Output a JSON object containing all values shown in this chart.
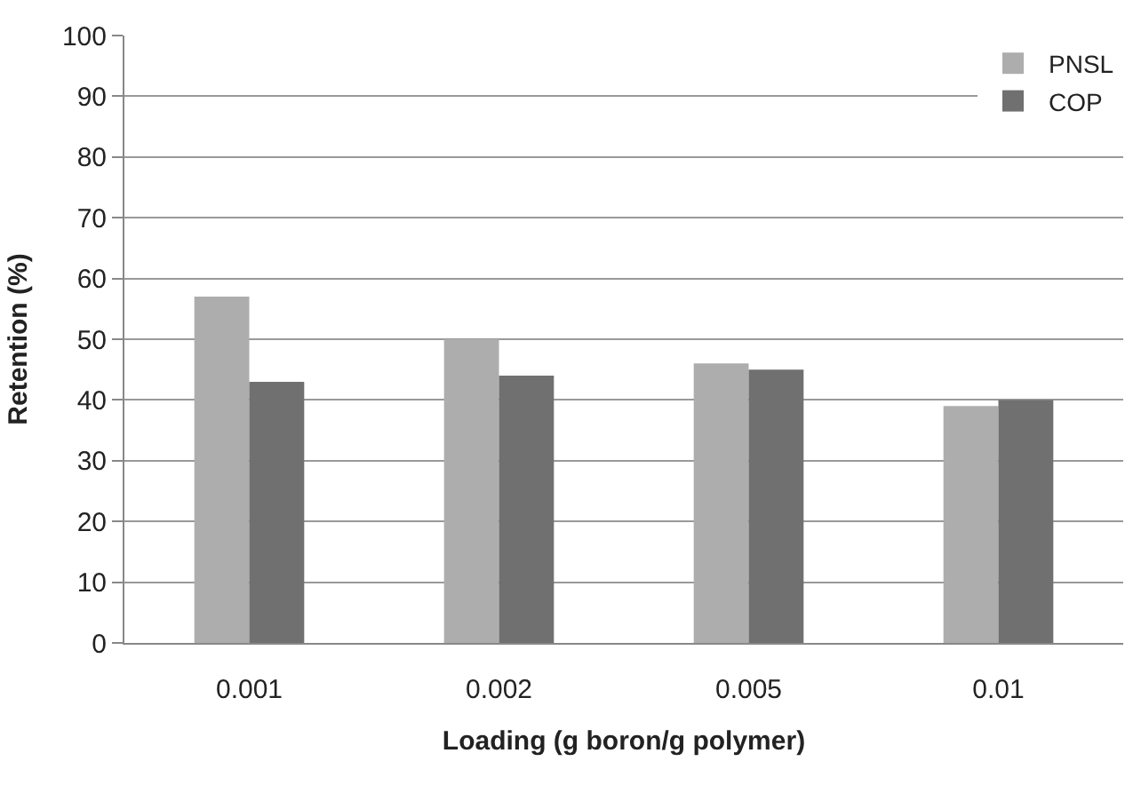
{
  "chart_data": {
    "type": "bar",
    "xlabel": "Loading (g boron/g polymer)",
    "ylabel": "Retention (%)",
    "categories": [
      "0.001",
      "0.002",
      "0.005",
      "0.01"
    ],
    "series": [
      {
        "name": "PNSL",
        "color": "#adadad",
        "values": [
          57,
          50,
          46,
          39
        ]
      },
      {
        "name": "COP",
        "color": "#707070",
        "values": [
          43,
          44,
          45,
          40
        ]
      }
    ],
    "ylim": [
      0,
      100
    ],
    "yticks": [
      0,
      10,
      20,
      30,
      40,
      50,
      60,
      70,
      80,
      90,
      100
    ],
    "grid": "y",
    "legend": "top right"
  }
}
